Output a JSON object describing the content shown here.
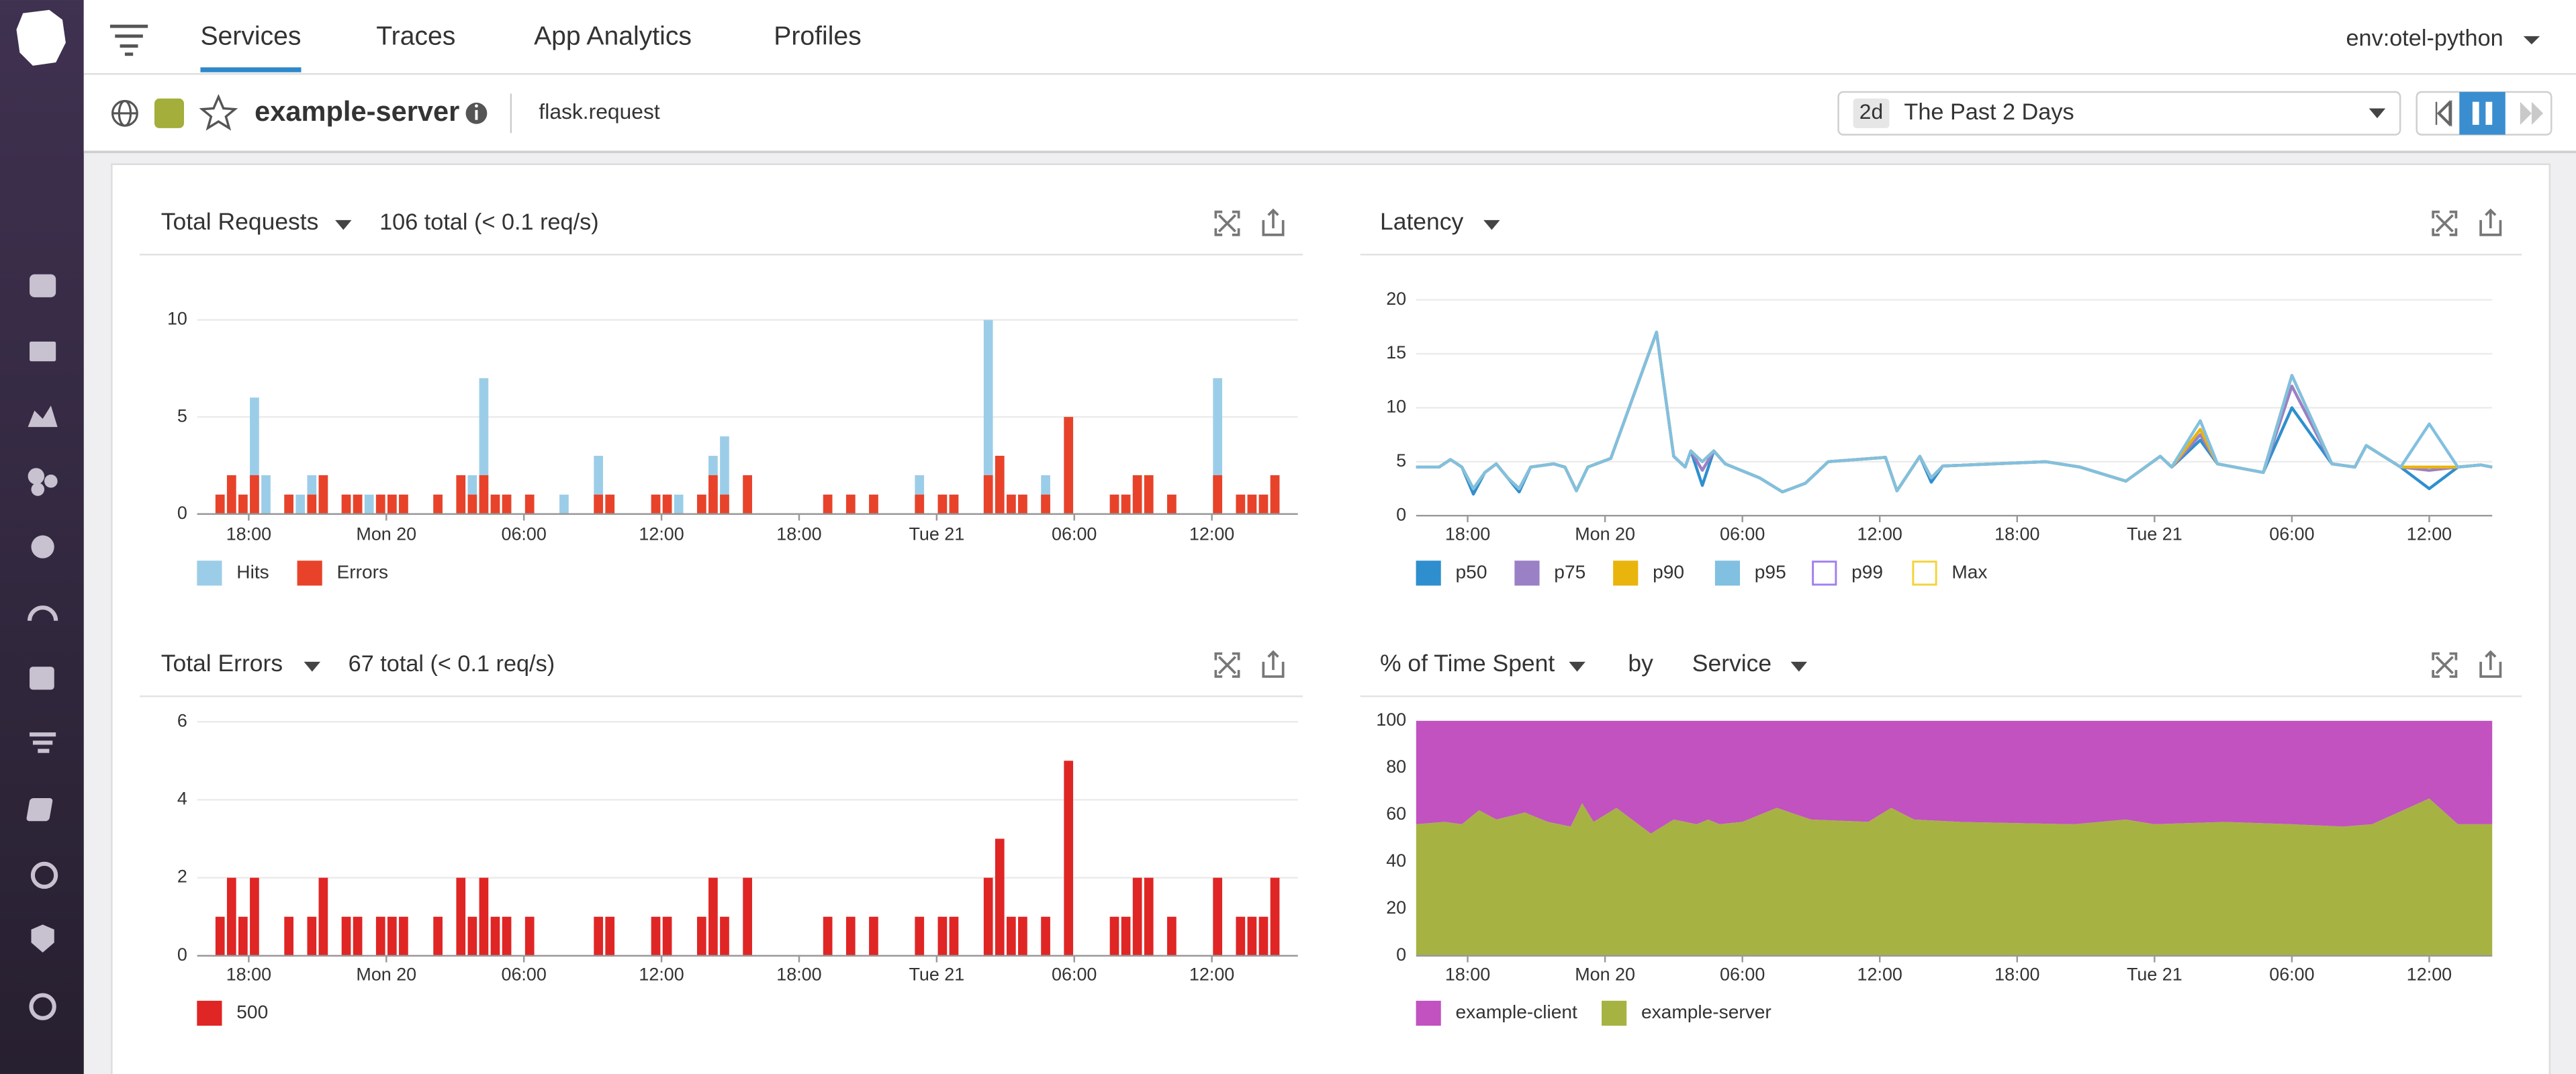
{
  "nav": {
    "tabs": [
      "Services",
      "Traces",
      "App Analytics",
      "Profiles"
    ],
    "active_tab": 0,
    "environment": "env:otel-python"
  },
  "header": {
    "service": "example-server",
    "resource": "flask.request",
    "time_badge": "2d",
    "time_range": "The Past 2 Days"
  },
  "chart_data": [
    {
      "type": "bar",
      "title": "Total Requests",
      "summary": "106 total (< 0.1 req/s)",
      "stacked": false,
      "grid": true,
      "x": [
        1,
        1.5,
        2,
        2.5,
        3,
        4,
        4.5,
        5,
        5.5,
        6.5,
        7,
        7.5,
        8,
        8.5,
        9,
        10.5,
        11.5,
        12,
        12.5,
        13,
        13.5,
        14.5,
        16,
        17.5,
        18,
        20,
        20.5,
        21,
        22,
        22.5,
        23,
        24,
        27.5,
        28.5,
        29.5,
        31.5,
        32.5,
        33,
        34.5,
        35,
        35.5,
        36,
        37,
        38,
        40,
        40.5,
        41,
        41.5,
        42.5,
        44.5,
        45.5,
        46,
        46.5,
        47
      ],
      "xlim": [
        0,
        48
      ],
      "xticks": [
        {
          "value": 2.25,
          "label": "18:00"
        },
        {
          "value": 8.25,
          "label": "Mon 20"
        },
        {
          "value": 14.25,
          "label": "06:00"
        },
        {
          "value": 20.25,
          "label": "12:00"
        },
        {
          "value": 26.25,
          "label": "18:00"
        },
        {
          "value": 32.25,
          "label": "Tue 21"
        },
        {
          "value": 38.25,
          "label": "06:00"
        },
        {
          "value": 44.25,
          "label": "12:00"
        }
      ],
      "ylim": [
        0,
        11
      ],
      "yticks": [
        0,
        5,
        10
      ],
      "series": [
        {
          "name": "Hits",
          "color": "#9ccde8",
          "values": [
            1,
            2,
            1,
            6,
            2,
            1,
            1,
            2,
            2,
            1,
            1,
            1,
            1,
            1,
            1,
            1,
            2,
            2,
            7,
            1,
            1,
            1,
            1,
            3,
            1,
            1,
            1,
            1,
            1,
            3,
            4,
            2,
            1,
            1,
            1,
            2,
            1,
            1,
            10,
            3,
            1,
            1,
            2,
            5,
            1,
            1,
            2,
            2,
            1,
            7,
            1,
            1,
            1,
            2
          ]
        },
        {
          "name": "Errors",
          "color": "#e8432a",
          "values": [
            1,
            2,
            1,
            2,
            0,
            1,
            0,
            1,
            2,
            1,
            1,
            0,
            1,
            1,
            1,
            1,
            2,
            1,
            2,
            1,
            1,
            1,
            0,
            1,
            1,
            1,
            1,
            0,
            1,
            2,
            1,
            2,
            1,
            1,
            1,
            1,
            1,
            1,
            2,
            3,
            1,
            1,
            1,
            5,
            1,
            1,
            2,
            2,
            1,
            2,
            1,
            1,
            1,
            2
          ]
        }
      ]
    },
    {
      "type": "line",
      "title": "Latency",
      "grid": true,
      "x": [
        0,
        1,
        1.5,
        2,
        2.5,
        3,
        3.5,
        4,
        4.5,
        5,
        6,
        6.5,
        7,
        7.5,
        8.5,
        10.5,
        11.25,
        11.75,
        12,
        12.5,
        13,
        13.5,
        15,
        16,
        17,
        18,
        20.5,
        21,
        22,
        22.5,
        23,
        27.5,
        29,
        31,
        32.5,
        33,
        34.25,
        35,
        37,
        38.25,
        40,
        41,
        41.5,
        43,
        44.25,
        45.5,
        46.5,
        47
      ],
      "xlim": [
        0,
        47
      ],
      "xticks": [
        {
          "value": 2.25,
          "label": "18:00"
        },
        {
          "value": 8.25,
          "label": "Mon 20"
        },
        {
          "value": 14.25,
          "label": "06:00"
        },
        {
          "value": 20.25,
          "label": "12:00"
        },
        {
          "value": 26.25,
          "label": "18:00"
        },
        {
          "value": 32.25,
          "label": "Tue 21"
        },
        {
          "value": 38.25,
          "label": "06:00"
        },
        {
          "value": 44.25,
          "label": "12:00"
        }
      ],
      "ylim": [
        0,
        21
      ],
      "yticks": [
        0,
        5,
        10,
        15,
        20
      ],
      "series": [
        {
          "name": "p50",
          "color": "#2f8fce",
          "values": [
            4.5,
            4.5,
            5.2,
            4.5,
            2,
            4,
            4.8,
            3.5,
            2.2,
            4.5,
            4.8,
            4.5,
            2.3,
            4.5,
            5.3,
            17,
            5.5,
            4.5,
            6,
            2.8,
            6,
            4.8,
            3.5,
            2.2,
            3,
            5,
            5.4,
            2.3,
            5.5,
            3.1,
            4.6,
            5,
            4.5,
            3.2,
            5.5,
            4.5,
            7,
            4.8,
            4,
            10,
            4.8,
            4.5,
            6.5,
            4.5,
            2.5,
            4.5,
            4.7,
            4.5
          ]
        },
        {
          "name": "p75",
          "color": "#9a80c4",
          "values": [
            4.5,
            4.5,
            5.2,
            4.5,
            2.5,
            4,
            4.8,
            3.5,
            2.5,
            4.5,
            4.8,
            4.5,
            2.3,
            4.5,
            5.3,
            17,
            5.5,
            4.5,
            6,
            4.2,
            6,
            4.8,
            3.5,
            2.2,
            3,
            5,
            5.4,
            2.3,
            5.5,
            3.5,
            4.6,
            5,
            4.5,
            3.2,
            5.5,
            4.5,
            7.5,
            4.8,
            4,
            12,
            4.8,
            4.5,
            6.5,
            4.5,
            4.2,
            4.5,
            4.7,
            4.5
          ]
        },
        {
          "name": "p90",
          "color": "#e9b40c",
          "values": [
            4.5,
            4.5,
            5.2,
            4.5,
            2.5,
            4,
            4.8,
            3.5,
            2.5,
            4.5,
            4.8,
            4.5,
            2.3,
            4.5,
            5.3,
            17,
            5.5,
            4.5,
            6,
            5,
            6,
            4.8,
            3.5,
            2.2,
            3,
            5,
            5.4,
            2.3,
            5.5,
            3.5,
            4.6,
            5,
            4.5,
            3.2,
            5.5,
            4.5,
            8,
            4.8,
            4,
            13,
            4.8,
            4.5,
            6.5,
            4.5,
            4.5,
            4.5,
            4.7,
            4.5
          ]
        },
        {
          "name": "p95",
          "color": "#81c0e0",
          "values": [
            4.5,
            4.5,
            5.2,
            4.5,
            2.5,
            4,
            4.8,
            3.5,
            2.5,
            4.5,
            4.8,
            4.5,
            2.3,
            4.5,
            5.3,
            17,
            5.5,
            4.5,
            6,
            5,
            6,
            4.8,
            3.5,
            2.2,
            3,
            5,
            5.4,
            2.3,
            5.5,
            3.5,
            4.6,
            5,
            4.5,
            3.2,
            5.5,
            4.5,
            8.8,
            4.8,
            4,
            13,
            4.8,
            4.5,
            6.5,
            4.5,
            8.5,
            4.5,
            4.7,
            4.5
          ]
        },
        {
          "name": "p99",
          "color": "#a07ff0",
          "hidden": true
        },
        {
          "name": "Max",
          "color": "#f5d33a",
          "hidden": true
        }
      ]
    },
    {
      "type": "bar",
      "title": "Total Errors",
      "summary": "67 total (< 0.1 req/s)",
      "stacked": false,
      "grid": true,
      "x": [
        1,
        1.5,
        2,
        2.5,
        3,
        4,
        4.5,
        5,
        5.5,
        6.5,
        7,
        7.5,
        8,
        8.5,
        9,
        10.5,
        11.5,
        12,
        12.5,
        13,
        13.5,
        14.5,
        16,
        17.5,
        18,
        20,
        20.5,
        21,
        22,
        22.5,
        23,
        24,
        27.5,
        28.5,
        29.5,
        31.5,
        32.5,
        33,
        34.5,
        35,
        35.5,
        36,
        37,
        38,
        40,
        40.5,
        41,
        41.5,
        42.5,
        44.5,
        45.5,
        46,
        46.5,
        47
      ],
      "xlim": [
        0,
        48
      ],
      "xticks": [
        {
          "value": 2.25,
          "label": "18:00"
        },
        {
          "value": 8.25,
          "label": "Mon 20"
        },
        {
          "value": 14.25,
          "label": "06:00"
        },
        {
          "value": 20.25,
          "label": "12:00"
        },
        {
          "value": 26.25,
          "label": "18:00"
        },
        {
          "value": 32.25,
          "label": "Tue 21"
        },
        {
          "value": 38.25,
          "label": "06:00"
        },
        {
          "value": 44.25,
          "label": "12:00"
        }
      ],
      "ylim": [
        0,
        6.4
      ],
      "yticks": [
        0,
        2,
        4,
        6
      ],
      "series": [
        {
          "name": "500",
          "color": "#e02525",
          "values": [
            1,
            2,
            1,
            2,
            0,
            1,
            0,
            1,
            2,
            1,
            1,
            0,
            1,
            1,
            1,
            1,
            2,
            1,
            2,
            1,
            1,
            1,
            0,
            1,
            1,
            1,
            1,
            0,
            1,
            2,
            1,
            2,
            1,
            1,
            1,
            1,
            1,
            1,
            2,
            3,
            1,
            1,
            1,
            5,
            1,
            1,
            2,
            2,
            1,
            2,
            1,
            1,
            1,
            2
          ]
        }
      ]
    },
    {
      "type": "area",
      "title": "% of Time Spent",
      "by_label": "by",
      "group_by": "Service",
      "stacked": true,
      "grid": true,
      "x": [
        0,
        1.25,
        2,
        2.75,
        3.5,
        4.75,
        5.75,
        6.75,
        7.25,
        7.75,
        8.75,
        10.25,
        11.25,
        12.25,
        12.75,
        13.25,
        14.25,
        15.75,
        17.25,
        19.75,
        20.75,
        21.75,
        23.75,
        28.75,
        31,
        32.25,
        35.25,
        38.25,
        40.5,
        41.75,
        44.25,
        45.5,
        47
      ],
      "xlim": [
        0,
        47
      ],
      "xticks": [
        {
          "value": 2.25,
          "label": "18:00"
        },
        {
          "value": 8.25,
          "label": "Mon 20"
        },
        {
          "value": 14.25,
          "label": "06:00"
        },
        {
          "value": 20.25,
          "label": "12:00"
        },
        {
          "value": 26.25,
          "label": "18:00"
        },
        {
          "value": 32.25,
          "label": "Tue 21"
        },
        {
          "value": 38.25,
          "label": "06:00"
        },
        {
          "value": 44.25,
          "label": "12:00"
        }
      ],
      "ylim": [
        0,
        100
      ],
      "yticks": [
        0,
        20,
        40,
        60,
        80,
        100
      ],
      "series": [
        {
          "name": "example-client",
          "color": "#c152c0",
          "values": [
            44,
            43,
            44,
            38,
            42,
            39,
            43,
            45,
            35,
            43,
            37,
            48,
            42,
            44,
            42,
            44,
            43,
            37,
            42,
            43,
            37,
            42,
            43,
            44,
            42,
            44,
            43,
            44,
            45,
            44,
            33,
            44,
            44
          ]
        },
        {
          "name": "example-server",
          "color": "#a6b342",
          "values": [
            56,
            57,
            56,
            62,
            58,
            61,
            57,
            55,
            65,
            57,
            63,
            52,
            58,
            56,
            58,
            56,
            57,
            63,
            58,
            57,
            63,
            58,
            57,
            56,
            58,
            56,
            57,
            56,
            55,
            56,
            67,
            56,
            56
          ]
        }
      ]
    }
  ]
}
